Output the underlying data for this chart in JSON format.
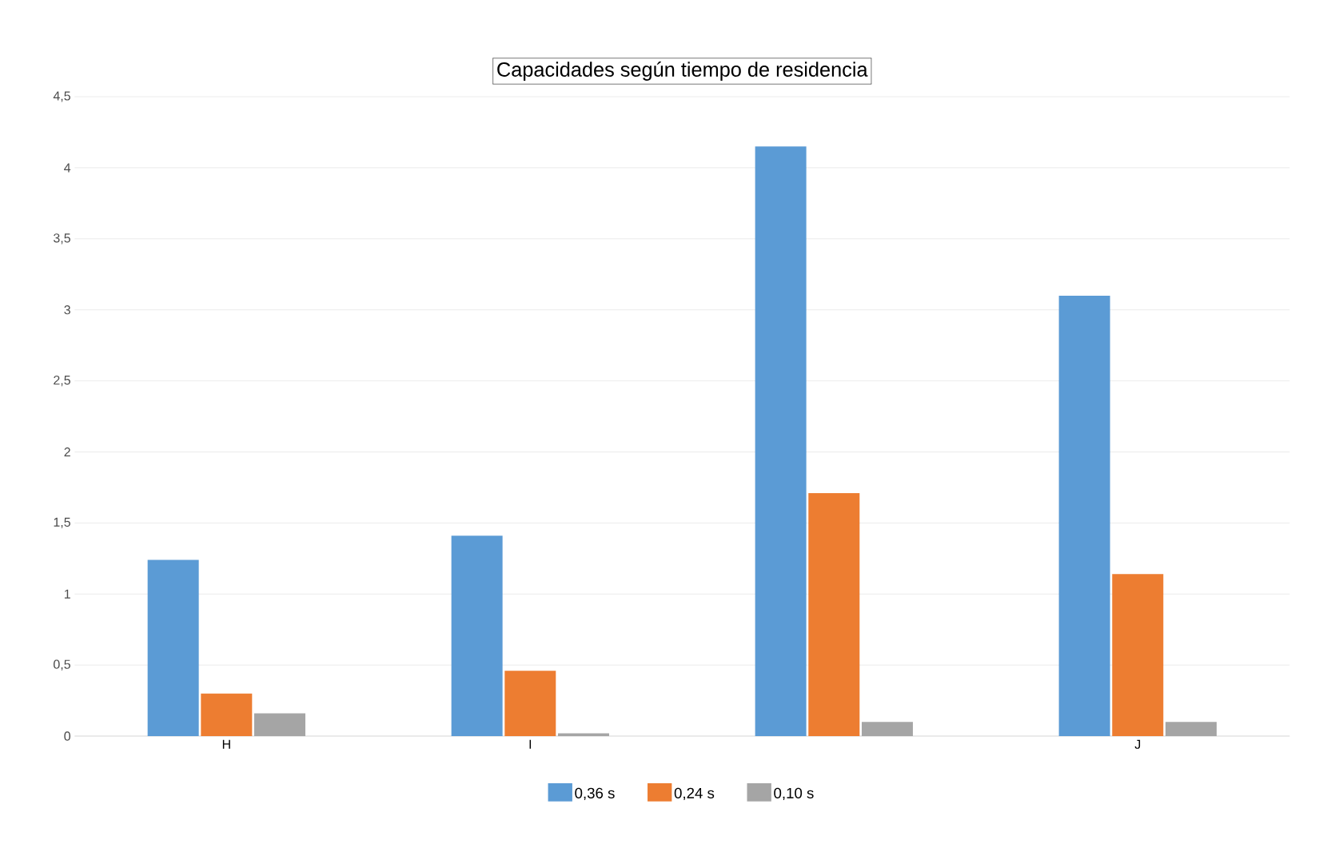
{
  "chart_data": {
    "type": "bar",
    "title": "Capacidades según tiempo de residencia",
    "categories": [
      "H",
      "I",
      null,
      "J"
    ],
    "series": [
      {
        "name": "0,36 s",
        "color": "#5b9bd5",
        "values": [
          1.24,
          1.41,
          4.15,
          3.1
        ]
      },
      {
        "name": "0,24 s",
        "color": "#ed7d31",
        "values": [
          0.3,
          0.46,
          1.71,
          1.14
        ]
      },
      {
        "name": "0,10 s",
        "color": "#a5a5a5",
        "values": [
          0.16,
          0.02,
          0.1,
          0.1
        ]
      }
    ],
    "ylim": [
      0,
      4.5
    ],
    "yticks": [
      {
        "value": 0,
        "label": "0"
      },
      {
        "value": 0.5,
        "label": "0,5"
      },
      {
        "value": 1,
        "label": "1"
      },
      {
        "value": 1.5,
        "label": "1,5"
      },
      {
        "value": 2,
        "label": "2"
      },
      {
        "value": 2.5,
        "label": "2,5"
      },
      {
        "value": 3,
        "label": "3"
      },
      {
        "value": 3.5,
        "label": "3,5"
      },
      {
        "value": 4,
        "label": "4"
      },
      {
        "value": 4.5,
        "label": "4,5"
      }
    ],
    "grid": "y",
    "legend": "bottom"
  }
}
